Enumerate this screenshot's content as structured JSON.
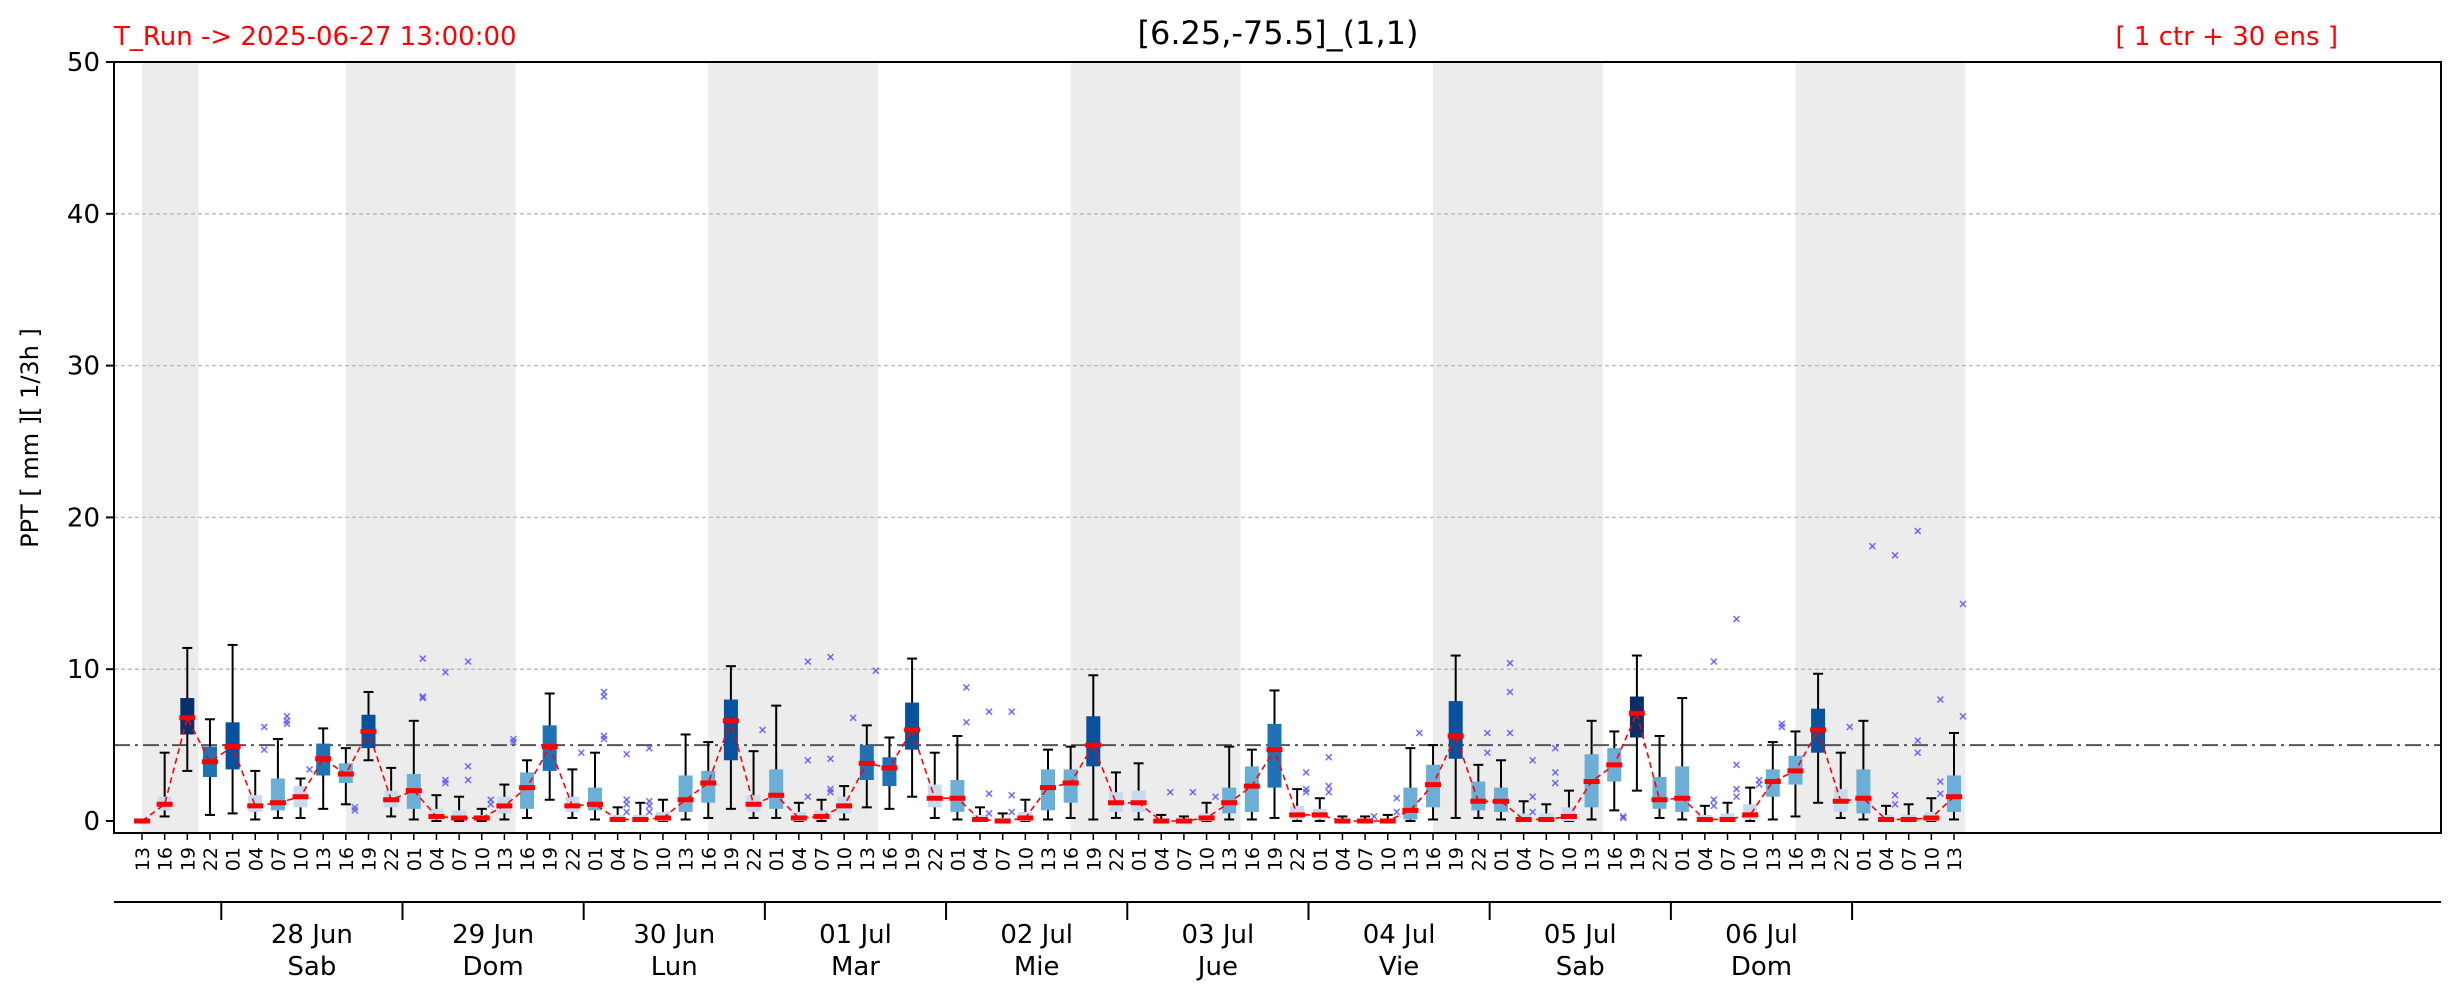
{
  "header": {
    "run_label": "T_Run -> 2025-06-27  13:00:00",
    "title": "[6.25,-75.5]_(1,1)",
    "ensemble_label": "[ 1 ctr + 30 ens ]"
  },
  "colors": {
    "header_red": "#ff0000",
    "night_shade": "#ececec",
    "threshold_line": "#555555",
    "median_line": "#ff0000",
    "outlier": "#5555ff",
    "whisker": "#000000",
    "box_light": "#c6dbef",
    "box_mid": "#6baed6",
    "box_dark": "#2171b5",
    "box_darker": "#08519c",
    "box_darkest": "#08306b"
  },
  "chart_data": {
    "type": "box",
    "ylabel": "PPT  [ mm ][ 1/3h ]",
    "ylim": [
      0,
      50
    ],
    "yticks": [
      0,
      10,
      20,
      30,
      40,
      50
    ],
    "grid": "horizontal-dashed",
    "threshold": 5,
    "x_hours": [
      "13",
      "16",
      "19",
      "22",
      "01",
      "04",
      "07",
      "10",
      "13",
      "16",
      "19",
      "22",
      "01",
      "04",
      "07",
      "10",
      "13",
      "16",
      "19",
      "22",
      "01",
      "04",
      "07",
      "10",
      "13",
      "16",
      "19",
      "22",
      "01",
      "04",
      "07",
      "10",
      "13",
      "16",
      "19",
      "22",
      "01",
      "04",
      "07",
      "10",
      "13",
      "16",
      "19",
      "22",
      "01",
      "04",
      "07",
      "10",
      "13",
      "16",
      "19",
      "22",
      "01",
      "04",
      "07",
      "10",
      "13",
      "16",
      "19",
      "22",
      "01",
      "04",
      "07",
      "10",
      "13",
      "16",
      "19",
      "22",
      "01",
      "04",
      "07",
      "10",
      "13",
      "16",
      "19",
      "22",
      "01",
      "04",
      "07",
      "10",
      "13"
    ],
    "days": [
      {
        "date": "28 Jun",
        "weekday": "Sab"
      },
      {
        "date": "29 Jun",
        "weekday": "Dom"
      },
      {
        "date": "30 Jun",
        "weekday": "Lun"
      },
      {
        "date": "01 Jul",
        "weekday": "Mar"
      },
      {
        "date": "02 Jul",
        "weekday": "Mie"
      },
      {
        "date": "03 Jul",
        "weekday": "Jue"
      },
      {
        "date": "04 Jul",
        "weekday": "Vie"
      },
      {
        "date": "05 Jul",
        "weekday": "Sab"
      },
      {
        "date": "06 Jul",
        "weekday": "Dom"
      }
    ],
    "night_shading": [
      [
        0,
        2.5
      ],
      [
        9,
        16.5
      ],
      [
        25,
        32.5
      ],
      [
        41,
        48.5
      ],
      [
        57,
        64.5
      ],
      [
        73,
        80.5
      ]
    ],
    "median_series": [
      0.0,
      1.1,
      6.8,
      3.9,
      4.9,
      1.0,
      1.2,
      1.6,
      4.1,
      3.1,
      5.9,
      1.4,
      2.0,
      0.3,
      0.2,
      0.2,
      1.0,
      2.2,
      4.9,
      1.0,
      1.1,
      0.1,
      0.1,
      0.2,
      1.4,
      2.5,
      6.6,
      1.1,
      1.7,
      0.2,
      0.3,
      1.0,
      3.8,
      3.5,
      6.0,
      1.5,
      1.5,
      0.1,
      0.0,
      0.2,
      2.2,
      2.5,
      5.0,
      1.2,
      1.2,
      0.0,
      0.0,
      0.2,
      1.2,
      2.3,
      4.7,
      0.4,
      0.4,
      0.0,
      0.0,
      0.0,
      0.7,
      2.4,
      5.6,
      1.3,
      1.3,
      0.1,
      0.1,
      0.3,
      2.6,
      3.7,
      7.1,
      1.4,
      1.5,
      0.1,
      0.1,
      0.4,
      2.6,
      3.3,
      6.0,
      1.3,
      1.5,
      0.1,
      0.1,
      0.2,
      1.6
    ],
    "box_stats": [
      {
        "x": 0,
        "low": 0,
        "q1": 0,
        "med": 0,
        "q3": 0,
        "high": 0,
        "shade": 0,
        "outliers": []
      },
      {
        "x": 1,
        "low": 0.3,
        "q1": 0.7,
        "med": 1.1,
        "q3": 1.6,
        "high": 4.5,
        "shade": 0,
        "outliers": []
      },
      {
        "x": 2,
        "low": 3.3,
        "q1": 5.7,
        "med": 6.8,
        "q3": 8.1,
        "high": 11.4,
        "shade": 4,
        "outliers": []
      },
      {
        "x": 3,
        "low": 0.4,
        "q1": 2.9,
        "med": 3.9,
        "q3": 4.9,
        "high": 6.7,
        "shade": 2,
        "outliers": []
      },
      {
        "x": 4,
        "low": 0.5,
        "q1": 3.4,
        "med": 4.9,
        "q3": 6.5,
        "high": 11.6,
        "shade": 3,
        "outliers": []
      },
      {
        "x": 5,
        "low": 0.1,
        "q1": 0.6,
        "med": 1.0,
        "q3": 1.7,
        "high": 3.3,
        "shade": 0,
        "outliers": [
          6.2,
          4.7
        ]
      },
      {
        "x": 6,
        "low": 0.2,
        "q1": 0.7,
        "med": 1.2,
        "q3": 2.8,
        "high": 5.4,
        "shade": 1,
        "outliers": [
          6.9,
          6.6,
          6.4
        ]
      },
      {
        "x": 7,
        "low": 0.2,
        "q1": 0.9,
        "med": 1.6,
        "q3": 2.3,
        "high": 2.8,
        "shade": 0,
        "outliers": [
          3.4
        ]
      },
      {
        "x": 8,
        "low": 0.8,
        "q1": 3.0,
        "med": 4.1,
        "q3": 5.1,
        "high": 6.1,
        "shade": 2,
        "outliers": []
      },
      {
        "x": 9,
        "low": 1.1,
        "q1": 2.5,
        "med": 3.1,
        "q3": 3.8,
        "high": 4.8,
        "shade": 1,
        "outliers": [
          0.7,
          0.9
        ]
      },
      {
        "x": 10,
        "low": 4.0,
        "q1": 4.8,
        "med": 5.9,
        "q3": 7.0,
        "high": 8.5,
        "shade": 3,
        "outliers": []
      },
      {
        "x": 11,
        "low": 0.3,
        "q1": 0.9,
        "med": 1.4,
        "q3": 2.0,
        "high": 3.5,
        "shade": 0,
        "outliers": []
      },
      {
        "x": 12,
        "low": 0.1,
        "q1": 0.8,
        "med": 2.0,
        "q3": 3.1,
        "high": 6.6,
        "shade": 1,
        "outliers": [
          10.7,
          8.2,
          8.1
        ]
      },
      {
        "x": 13,
        "low": 0.0,
        "q1": 0.1,
        "med": 0.3,
        "q3": 0.8,
        "high": 1.7,
        "shade": 0,
        "outliers": [
          9.8,
          2.7,
          2.5
        ]
      },
      {
        "x": 14,
        "low": 0.0,
        "q1": 0.1,
        "med": 0.2,
        "q3": 0.7,
        "high": 1.6,
        "shade": 0,
        "outliers": [
          10.5,
          3.6,
          2.7
        ]
      },
      {
        "x": 15,
        "low": 0.0,
        "q1": 0.1,
        "med": 0.2,
        "q3": 0.4,
        "high": 0.8,
        "shade": 0,
        "outliers": [
          1.4,
          1.1
        ]
      },
      {
        "x": 16,
        "low": 0.1,
        "q1": 0.5,
        "med": 1.0,
        "q3": 1.6,
        "high": 2.4,
        "shade": 0,
        "outliers": [
          5.4,
          5.2
        ]
      },
      {
        "x": 17,
        "low": 0.2,
        "q1": 0.8,
        "med": 2.2,
        "q3": 3.2,
        "high": 4.0,
        "shade": 1,
        "outliers": []
      },
      {
        "x": 18,
        "low": 1.4,
        "q1": 3.3,
        "med": 4.9,
        "q3": 6.3,
        "high": 8.4,
        "shade": 2,
        "outliers": []
      },
      {
        "x": 19,
        "low": 0.2,
        "q1": 0.6,
        "med": 1.0,
        "q3": 1.6,
        "high": 3.4,
        "shade": 0,
        "outliers": [
          4.5
        ]
      },
      {
        "x": 20,
        "low": 0.1,
        "q1": 0.7,
        "med": 1.1,
        "q3": 2.2,
        "high": 4.5,
        "shade": 1,
        "outliers": [
          8.5,
          8.2,
          5.6,
          5.4
        ]
      },
      {
        "x": 21,
        "low": 0.0,
        "q1": 0.0,
        "med": 0.1,
        "q3": 0.4,
        "high": 0.9,
        "shade": 0,
        "outliers": [
          4.4,
          1.4,
          1.1,
          0.6
        ]
      },
      {
        "x": 22,
        "low": 0.0,
        "q1": 0.0,
        "med": 0.1,
        "q3": 0.4,
        "high": 1.2,
        "shade": 0,
        "outliers": [
          4.8,
          1.3,
          1.0,
          0.6
        ]
      },
      {
        "x": 23,
        "low": 0.0,
        "q1": 0.0,
        "med": 0.2,
        "q3": 0.6,
        "high": 1.4,
        "shade": 0,
        "outliers": []
      },
      {
        "x": 24,
        "low": 0.1,
        "q1": 0.6,
        "med": 1.4,
        "q3": 3.0,
        "high": 5.7,
        "shade": 1,
        "outliers": []
      },
      {
        "x": 25,
        "low": 0.2,
        "q1": 1.2,
        "med": 2.5,
        "q3": 3.3,
        "high": 5.2,
        "shade": 1,
        "outliers": []
      },
      {
        "x": 26,
        "low": 0.8,
        "q1": 4.0,
        "med": 6.6,
        "q3": 8.0,
        "high": 10.2,
        "shade": 3,
        "outliers": []
      },
      {
        "x": 27,
        "low": 0.2,
        "q1": 0.6,
        "med": 1.1,
        "q3": 1.7,
        "high": 4.6,
        "shade": 0,
        "outliers": [
          6.0
        ]
      },
      {
        "x": 28,
        "low": 0.2,
        "q1": 0.8,
        "med": 1.7,
        "q3": 3.4,
        "high": 7.6,
        "shade": 1,
        "outliers": []
      },
      {
        "x": 29,
        "low": 0.0,
        "q1": 0.0,
        "med": 0.2,
        "q3": 0.6,
        "high": 1.2,
        "shade": 0,
        "outliers": [
          10.5,
          4.0,
          1.6
        ]
      },
      {
        "x": 30,
        "low": 0.0,
        "q1": 0.1,
        "med": 0.3,
        "q3": 0.7,
        "high": 1.4,
        "shade": 0,
        "outliers": [
          10.8,
          4.1,
          2.1,
          1.9
        ]
      },
      {
        "x": 31,
        "low": 0.1,
        "q1": 0.5,
        "med": 1.0,
        "q3": 1.6,
        "high": 2.3,
        "shade": 0,
        "outliers": [
          6.8
        ]
      },
      {
        "x": 32,
        "low": 0.9,
        "q1": 2.7,
        "med": 3.8,
        "q3": 5.0,
        "high": 6.3,
        "shade": 2,
        "outliers": [
          9.9
        ]
      },
      {
        "x": 33,
        "low": 0.8,
        "q1": 2.3,
        "med": 3.5,
        "q3": 4.2,
        "high": 5.5,
        "shade": 2,
        "outliers": []
      },
      {
        "x": 34,
        "low": 1.6,
        "q1": 4.7,
        "med": 6.0,
        "q3": 7.8,
        "high": 10.7,
        "shade": 3,
        "outliers": []
      },
      {
        "x": 35,
        "low": 0.2,
        "q1": 0.9,
        "med": 1.5,
        "q3": 2.4,
        "high": 4.5,
        "shade": 0,
        "outliers": []
      },
      {
        "x": 36,
        "low": 0.1,
        "q1": 0.6,
        "med": 1.5,
        "q3": 2.7,
        "high": 5.6,
        "shade": 1,
        "outliers": [
          8.8,
          6.5
        ]
      },
      {
        "x": 37,
        "low": 0.0,
        "q1": 0.0,
        "med": 0.1,
        "q3": 0.4,
        "high": 0.9,
        "shade": 0,
        "outliers": [
          7.2,
          1.8,
          0.5
        ]
      },
      {
        "x": 38,
        "low": 0.0,
        "q1": 0.0,
        "med": 0.0,
        "q3": 0.2,
        "high": 0.5,
        "shade": 0,
        "outliers": [
          7.2,
          1.7,
          0.6
        ]
      },
      {
        "x": 39,
        "low": 0.0,
        "q1": 0.0,
        "med": 0.2,
        "q3": 0.6,
        "high": 1.4,
        "shade": 0,
        "outliers": []
      },
      {
        "x": 40,
        "low": 0.1,
        "q1": 0.7,
        "med": 2.2,
        "q3": 3.4,
        "high": 4.7,
        "shade": 1,
        "outliers": []
      },
      {
        "x": 41,
        "low": 0.2,
        "q1": 1.2,
        "med": 2.5,
        "q3": 3.4,
        "high": 4.9,
        "shade": 1,
        "outliers": []
      },
      {
        "x": 42,
        "low": 0.1,
        "q1": 3.6,
        "med": 5.0,
        "q3": 6.9,
        "high": 9.6,
        "shade": 3,
        "outliers": []
      },
      {
        "x": 43,
        "low": 0.2,
        "q1": 0.6,
        "med": 1.2,
        "q3": 1.9,
        "high": 3.2,
        "shade": 0,
        "outliers": []
      },
      {
        "x": 44,
        "low": 0.1,
        "q1": 0.6,
        "med": 1.2,
        "q3": 2.0,
        "high": 3.8,
        "shade": 0,
        "outliers": []
      },
      {
        "x": 45,
        "low": 0.0,
        "q1": 0.0,
        "med": 0.0,
        "q3": 0.1,
        "high": 0.4,
        "shade": 0,
        "outliers": [
          1.9
        ]
      },
      {
        "x": 46,
        "low": 0.0,
        "q1": 0.0,
        "med": 0.0,
        "q3": 0.1,
        "high": 0.3,
        "shade": 0,
        "outliers": [
          1.9
        ]
      },
      {
        "x": 47,
        "low": 0.0,
        "q1": 0.0,
        "med": 0.2,
        "q3": 0.5,
        "high": 1.2,
        "shade": 0,
        "outliers": [
          1.6
        ]
      },
      {
        "x": 48,
        "low": 0.1,
        "q1": 0.5,
        "med": 1.2,
        "q3": 2.2,
        "high": 4.9,
        "shade": 1,
        "outliers": []
      },
      {
        "x": 49,
        "low": 0.1,
        "q1": 0.6,
        "med": 2.3,
        "q3": 3.6,
        "high": 4.7,
        "shade": 1,
        "outliers": []
      },
      {
        "x": 50,
        "low": 0.2,
        "q1": 2.2,
        "med": 4.7,
        "q3": 6.4,
        "high": 8.6,
        "shade": 2,
        "outliers": []
      },
      {
        "x": 51,
        "low": 0.0,
        "q1": 0.1,
        "med": 0.4,
        "q3": 1.0,
        "high": 2.1,
        "shade": 0,
        "outliers": [
          3.2,
          2.1,
          1.9
        ]
      },
      {
        "x": 52,
        "low": 0.0,
        "q1": 0.1,
        "med": 0.4,
        "q3": 0.8,
        "high": 1.5,
        "shade": 0,
        "outliers": [
          4.2,
          2.3,
          1.9
        ]
      },
      {
        "x": 53,
        "low": 0.0,
        "q1": 0.0,
        "med": 0.0,
        "q3": 0.1,
        "high": 0.3,
        "shade": 0,
        "outliers": []
      },
      {
        "x": 54,
        "low": 0.0,
        "q1": 0.0,
        "med": 0.0,
        "q3": 0.1,
        "high": 0.3,
        "shade": 0,
        "outliers": [
          0.3
        ]
      },
      {
        "x": 55,
        "low": 0.0,
        "q1": 0.0,
        "med": 0.0,
        "q3": 0.1,
        "high": 0.4,
        "shade": 0,
        "outliers": [
          1.5,
          0.6
        ]
      },
      {
        "x": 56,
        "low": 0.0,
        "q1": 0.1,
        "med": 0.7,
        "q3": 2.2,
        "high": 4.8,
        "shade": 1,
        "outliers": [
          5.8
        ]
      },
      {
        "x": 57,
        "low": 0.1,
        "q1": 0.9,
        "med": 2.4,
        "q3": 3.7,
        "high": 5.0,
        "shade": 1,
        "outliers": []
      },
      {
        "x": 58,
        "low": 0.2,
        "q1": 4.1,
        "med": 5.6,
        "q3": 7.9,
        "high": 10.9,
        "shade": 3,
        "outliers": []
      },
      {
        "x": 59,
        "low": 0.2,
        "q1": 0.7,
        "med": 1.3,
        "q3": 2.6,
        "high": 3.7,
        "shade": 1,
        "outliers": [
          5.8,
          4.5
        ]
      },
      {
        "x": 60,
        "low": 0.1,
        "q1": 0.6,
        "med": 1.3,
        "q3": 2.2,
        "high": 4.0,
        "shade": 1,
        "outliers": [
          10.4,
          8.5,
          5.8
        ]
      },
      {
        "x": 61,
        "low": 0.0,
        "q1": 0.0,
        "med": 0.1,
        "q3": 0.5,
        "high": 1.3,
        "shade": 0,
        "outliers": [
          4.0,
          1.6,
          0.6
        ]
      },
      {
        "x": 62,
        "low": 0.0,
        "q1": 0.0,
        "med": 0.1,
        "q3": 0.5,
        "high": 1.1,
        "shade": 0,
        "outliers": [
          4.8,
          3.2,
          2.5
        ]
      },
      {
        "x": 63,
        "low": 0.0,
        "q1": 0.0,
        "med": 0.3,
        "q3": 0.9,
        "high": 2.0,
        "shade": 0,
        "outliers": []
      },
      {
        "x": 64,
        "low": 0.1,
        "q1": 0.9,
        "med": 2.6,
        "q3": 4.4,
        "high": 6.6,
        "shade": 1,
        "outliers": []
      },
      {
        "x": 65,
        "low": 0.7,
        "q1": 2.6,
        "med": 3.7,
        "q3": 4.8,
        "high": 5.9,
        "shade": 1,
        "outliers": [
          0.3,
          0.2
        ]
      },
      {
        "x": 66,
        "low": 2.0,
        "q1": 5.5,
        "med": 7.1,
        "q3": 8.2,
        "high": 10.9,
        "shade": 4,
        "outliers": []
      },
      {
        "x": 67,
        "low": 0.2,
        "q1": 0.8,
        "med": 1.4,
        "q3": 2.9,
        "high": 5.6,
        "shade": 1,
        "outliers": []
      },
      {
        "x": 68,
        "low": 0.1,
        "q1": 0.6,
        "med": 1.5,
        "q3": 3.6,
        "high": 8.1,
        "shade": 1,
        "outliers": []
      },
      {
        "x": 69,
        "low": 0.0,
        "q1": 0.0,
        "med": 0.1,
        "q3": 0.4,
        "high": 1.0,
        "shade": 0,
        "outliers": [
          10.5,
          1.4,
          1.0
        ]
      },
      {
        "x": 70,
        "low": 0.0,
        "q1": 0.0,
        "med": 0.1,
        "q3": 0.5,
        "high": 1.2,
        "shade": 0,
        "outliers": [
          13.3,
          3.7,
          2.1,
          1.6
        ]
      },
      {
        "x": 71,
        "low": 0.0,
        "q1": 0.1,
        "med": 0.4,
        "q3": 1.1,
        "high": 2.2,
        "shade": 0,
        "outliers": [
          2.7,
          2.4
        ]
      },
      {
        "x": 72,
        "low": 0.1,
        "q1": 1.6,
        "med": 2.6,
        "q3": 3.4,
        "high": 5.2,
        "shade": 1,
        "outliers": [
          6.4,
          6.2
        ]
      },
      {
        "x": 73,
        "low": 0.3,
        "q1": 2.4,
        "med": 3.3,
        "q3": 4.3,
        "high": 5.9,
        "shade": 1,
        "outliers": []
      },
      {
        "x": 74,
        "low": 1.2,
        "q1": 4.5,
        "med": 6.0,
        "q3": 7.4,
        "high": 9.7,
        "shade": 3,
        "outliers": []
      },
      {
        "x": 75,
        "low": 0.2,
        "q1": 0.6,
        "med": 1.3,
        "q3": 2.1,
        "high": 4.5,
        "shade": 0,
        "outliers": [
          6.2
        ]
      },
      {
        "x": 76,
        "low": 0.1,
        "q1": 0.5,
        "med": 1.5,
        "q3": 3.4,
        "high": 6.6,
        "shade": 1,
        "outliers": [
          18.1
        ]
      },
      {
        "x": 77,
        "low": 0.0,
        "q1": 0.0,
        "med": 0.1,
        "q3": 0.4,
        "high": 1.0,
        "shade": 0,
        "outliers": [
          17.5,
          1.7,
          1.1
        ]
      },
      {
        "x": 78,
        "low": 0.0,
        "q1": 0.0,
        "med": 0.1,
        "q3": 0.4,
        "high": 1.1,
        "shade": 0,
        "outliers": [
          19.1,
          5.3,
          4.5
        ]
      },
      {
        "x": 79,
        "low": 0.0,
        "q1": 0.0,
        "med": 0.2,
        "q3": 0.6,
        "high": 1.5,
        "shade": 0,
        "outliers": [
          8.0,
          2.6,
          1.8
        ]
      },
      {
        "x": 80,
        "low": 0.1,
        "q1": 0.6,
        "med": 1.6,
        "q3": 3.0,
        "high": 5.8,
        "shade": 1,
        "outliers": [
          14.3,
          6.9
        ]
      }
    ]
  }
}
